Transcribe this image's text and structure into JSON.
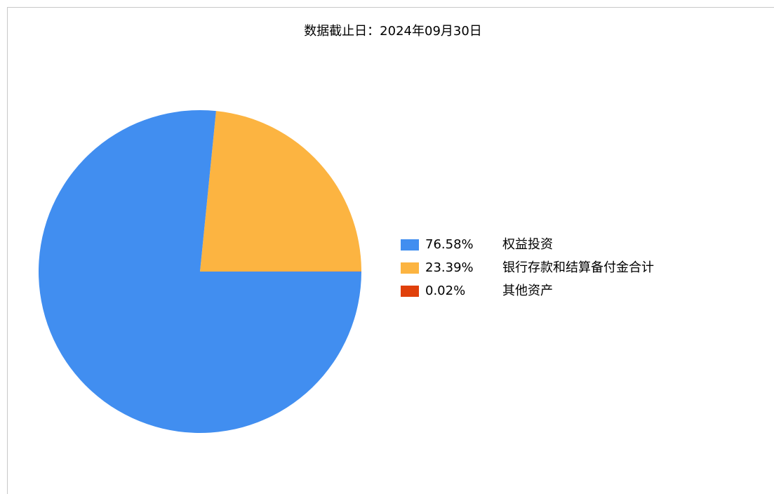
{
  "chart_data": {
    "type": "pie",
    "title": "数据截止日：2024年09月30日",
    "categories": [
      "权益投资",
      "银行存款和结算备付金合计",
      "其他资产"
    ],
    "values": [
      76.58,
      23.39,
      0.02
    ],
    "value_labels": [
      "76.58%",
      "23.39%",
      "0.02%"
    ],
    "colors": [
      "#418ef0",
      "#fcb441",
      "#e0400a"
    ],
    "legend": "right"
  }
}
